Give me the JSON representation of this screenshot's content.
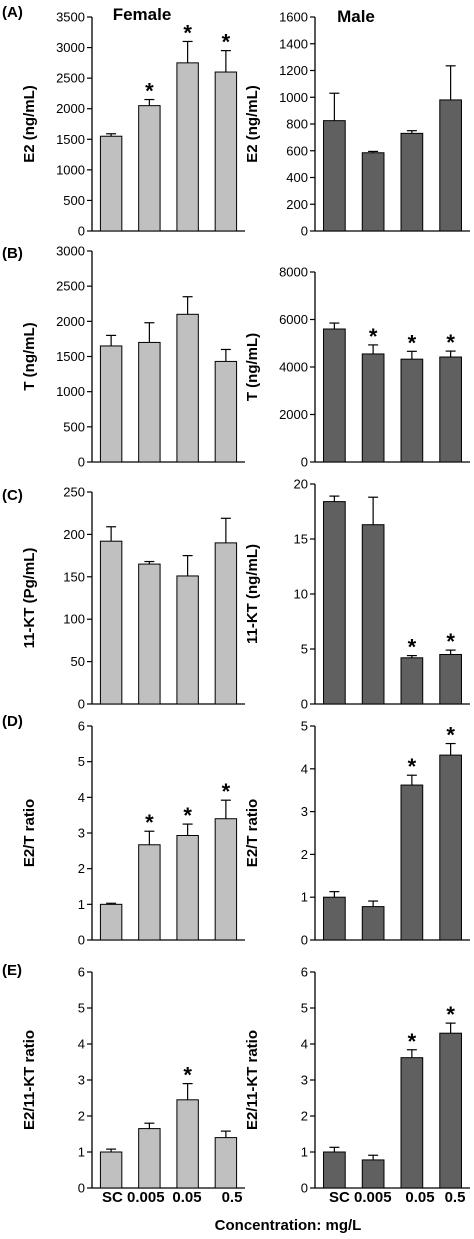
{
  "figure": {
    "panel_labels": [
      "(A)",
      "(B)",
      "(C)",
      "(D)",
      "(E)"
    ],
    "column_titles": [
      "Female",
      "Male"
    ],
    "x_axis_label": "Concentration: mg/L",
    "significance_marker": "*",
    "colors": {
      "female_bar": "#c0c0c0",
      "male_bar": "#606060",
      "axis": "#000000"
    }
  },
  "chart_data": [
    {
      "id": "A-female",
      "type": "bar",
      "categories": [
        "SC",
        "0.005",
        "0.05",
        "0.5"
      ],
      "values": [
        1550,
        2050,
        2750,
        2600
      ],
      "errors": [
        40,
        100,
        350,
        350
      ],
      "significant": [
        false,
        true,
        true,
        true
      ],
      "ylabel": "E2 (ng/mL)",
      "ylim": [
        0,
        3500
      ],
      "yticks": [
        0,
        500,
        1000,
        1500,
        2000,
        2500,
        3000,
        3500
      ],
      "title": "Female",
      "series_color": "#c0c0c0"
    },
    {
      "id": "A-male",
      "type": "bar",
      "categories": [
        "SC",
        "0.005",
        "0.05",
        "0.5"
      ],
      "values": [
        825,
        585,
        730,
        980
      ],
      "errors": [
        205,
        10,
        20,
        255
      ],
      "significant": [
        false,
        false,
        false,
        false
      ],
      "ylabel": "E2 (ng/mL)",
      "ylim": [
        0,
        1600
      ],
      "yticks": [
        0,
        200,
        400,
        600,
        800,
        1000,
        1200,
        1400,
        1600
      ],
      "title": "Male",
      "series_color": "#606060"
    },
    {
      "id": "B-female",
      "type": "bar",
      "categories": [
        "SC",
        "0.005",
        "0.05",
        "0.5"
      ],
      "values": [
        1650,
        1700,
        2100,
        1430
      ],
      "errors": [
        150,
        280,
        250,
        170
      ],
      "significant": [
        false,
        false,
        false,
        false
      ],
      "ylabel": "T (ng/mL)",
      "ylim": [
        0,
        3000
      ],
      "yticks": [
        0,
        500,
        1000,
        1500,
        2000,
        2500,
        3000
      ],
      "series_color": "#c0c0c0"
    },
    {
      "id": "B-male",
      "type": "bar",
      "categories": [
        "SC",
        "0.005",
        "0.05",
        "0.5"
      ],
      "values": [
        5600,
        4550,
        4330,
        4420
      ],
      "errors": [
        250,
        380,
        330,
        250
      ],
      "significant": [
        false,
        true,
        true,
        true
      ],
      "ylabel": "T (ng/mL)",
      "ylim": [
        0,
        8000
      ],
      "yticks": [
        0,
        2000,
        4000,
        6000,
        8000
      ],
      "series_color": "#606060"
    },
    {
      "id": "C-female",
      "type": "bar",
      "categories": [
        "SC",
        "0.005",
        "0.05",
        "0.5"
      ],
      "values": [
        192,
        165,
        151,
        190
      ],
      "errors": [
        17,
        3,
        24,
        29
      ],
      "significant": [
        false,
        false,
        false,
        false
      ],
      "ylabel": "11-KT (Pg/mL)",
      "ylim": [
        0,
        250
      ],
      "yticks": [
        0,
        50,
        100,
        150,
        200,
        250
      ],
      "series_color": "#c0c0c0"
    },
    {
      "id": "C-male",
      "type": "bar",
      "categories": [
        "SC",
        "0.005",
        "0.05",
        "0.5"
      ],
      "values": [
        18.4,
        16.3,
        4.2,
        4.5
      ],
      "errors": [
        0.5,
        2.5,
        0.2,
        0.4
      ],
      "significant": [
        false,
        false,
        true,
        true
      ],
      "ylabel": "11-KT (ng/mL)",
      "ylim": [
        0,
        20
      ],
      "yticks": [
        0,
        5,
        10,
        15,
        20
      ],
      "series_color": "#606060"
    },
    {
      "id": "D-female",
      "type": "bar",
      "categories": [
        "SC",
        "0.005",
        "0.05",
        "0.5"
      ],
      "values": [
        1.0,
        2.67,
        2.93,
        3.4
      ],
      "errors": [
        0.03,
        0.38,
        0.32,
        0.52
      ],
      "significant": [
        false,
        true,
        true,
        true
      ],
      "ylabel": "E2/T ratio",
      "ylim": [
        0,
        6
      ],
      "yticks": [
        0,
        1,
        2,
        3,
        4,
        5,
        6
      ],
      "series_color": "#c0c0c0"
    },
    {
      "id": "D-male",
      "type": "bar",
      "categories": [
        "SC",
        "0.005",
        "0.05",
        "0.5"
      ],
      "values": [
        1.0,
        0.78,
        3.62,
        4.32
      ],
      "errors": [
        0.13,
        0.13,
        0.23,
        0.27
      ],
      "significant": [
        false,
        false,
        true,
        true
      ],
      "ylabel": "E2/T ratio",
      "ylim": [
        0,
        5
      ],
      "yticks": [
        0,
        1,
        2,
        3,
        4,
        5
      ],
      "series_color": "#606060"
    },
    {
      "id": "E-female",
      "type": "bar",
      "categories": [
        "SC",
        "0.005",
        "0.05",
        "0.5"
      ],
      "values": [
        1.0,
        1.65,
        2.45,
        1.4
      ],
      "errors": [
        0.08,
        0.15,
        0.45,
        0.18
      ],
      "significant": [
        false,
        false,
        true,
        false
      ],
      "ylabel": "E2/11-KT ratio",
      "ylim": [
        0,
        6
      ],
      "yticks": [
        0,
        1,
        2,
        3,
        4,
        5,
        6
      ],
      "series_color": "#c0c0c0"
    },
    {
      "id": "E-male",
      "type": "bar",
      "categories": [
        "SC",
        "0.005",
        "0.05",
        "0.5"
      ],
      "values": [
        1.0,
        0.78,
        3.62,
        4.3
      ],
      "errors": [
        0.13,
        0.13,
        0.22,
        0.28
      ],
      "significant": [
        false,
        false,
        true,
        true
      ],
      "ylabel": "E2/11-KT ratio",
      "ylim": [
        0,
        6
      ],
      "yticks": [
        0,
        1,
        2,
        3,
        4,
        5,
        6
      ],
      "series_color": "#606060"
    }
  ]
}
